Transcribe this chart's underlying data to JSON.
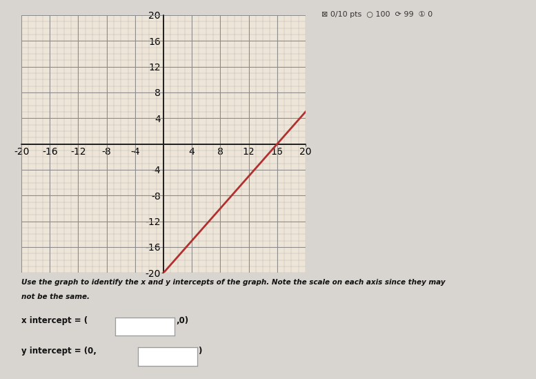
{
  "xmin": -20,
  "xmax": 20,
  "ymin": -20,
  "ymax": 20,
  "major_ticks": [
    -20,
    -16,
    -12,
    -8,
    -4,
    0,
    4,
    8,
    12,
    16,
    20
  ],
  "line_color": "#b03030",
  "grid_major_color": "#8a8a8a",
  "grid_minor_color": "#c0b8b0",
  "background_color": "#ede5d8",
  "fig_background": "#d8d4d0",
  "axis_color": "#222222",
  "tick_label_color": "#222222",
  "slope": 1.25,
  "y_intercept_val": -20,
  "question_line1": "Use the graph to identify the x and y intercepts of the graph. Note the scale on each axis since they may",
  "question_line2": "not be the same.",
  "xi_text1": "x intercept = (",
  "xi_text2": ",0)",
  "yi_text1": "y intercept = (0,",
  "yi_text2": ")"
}
